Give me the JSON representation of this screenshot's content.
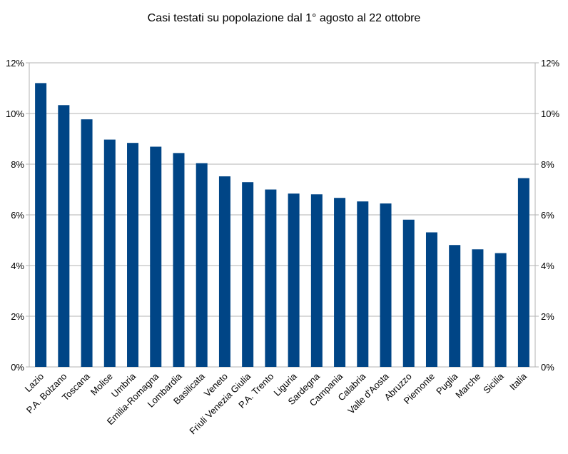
{
  "chart_data": {
    "type": "bar",
    "title": "Casi testati su popolazione dal 1° agosto al 22 ottobre",
    "xlabel": "",
    "ylabel": "",
    "ylim": [
      0,
      12
    ],
    "y_ticks": [
      "0%",
      "2%",
      "4%",
      "6%",
      "8%",
      "10%",
      "12%"
    ],
    "y_tick_values": [
      0,
      2,
      4,
      6,
      8,
      10,
      12
    ],
    "y_unit": "%",
    "grid": true,
    "secondary_y_axis": true,
    "legend": "none",
    "bar_color": "#004586",
    "categories": [
      "Lazio",
      "P.A. Bolzano",
      "Toscana",
      "Molise",
      "Umbria",
      "Emilia-Romagna",
      "Lombardia",
      "Basilicata",
      "Veneto",
      "Friuli Venezia Giulia",
      "P.A. Trento",
      "Liguria",
      "Sardegna",
      "Campania",
      "Calabria",
      "Valle d'Aosta",
      "Abruzzo",
      "Piemonte",
      "Puglia",
      "Marche",
      "Sicilia",
      "Italia"
    ],
    "values": [
      11.2,
      10.33,
      9.77,
      8.97,
      8.84,
      8.69,
      8.44,
      8.04,
      7.52,
      7.29,
      7.0,
      6.84,
      6.81,
      6.67,
      6.53,
      6.45,
      5.81,
      5.31,
      4.81,
      4.64,
      4.49,
      7.45
    ]
  }
}
